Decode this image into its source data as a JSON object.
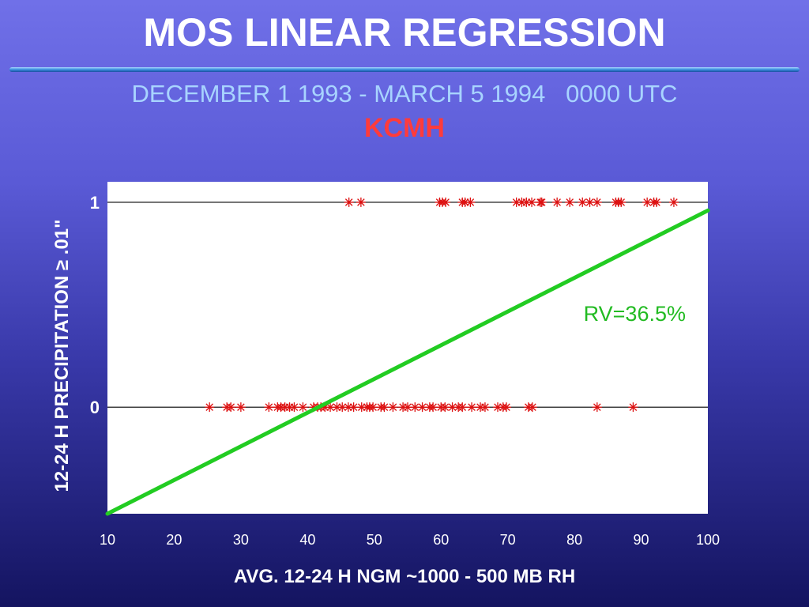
{
  "slide": {
    "title": "MOS LINEAR REGRESSION",
    "subtitle": "DECEMBER 1 1993 - MARCH 5 1994   0000 UTC",
    "station": "KCMH"
  },
  "chart_data": {
    "type": "scatter",
    "title": "MOS LINEAR REGRESSION",
    "xlabel": "AVG. 12-24 H NGM ~1000 - 500 MB RH",
    "ylabel": "12-24 H PRECIPITATION ≥ .01\"",
    "xlim": [
      10,
      100
    ],
    "ylim": [
      -0.52,
      1.1
    ],
    "x_ticks": [
      "10",
      "20",
      "30",
      "40",
      "50",
      "60",
      "70",
      "80",
      "90",
      "100"
    ],
    "y_ticks": [
      "0",
      "1"
    ],
    "y_tick_values": [
      0,
      1
    ],
    "grid": "horizontal lines at 0 and 1",
    "colors": {
      "points": "#dd1111",
      "regression": "#22cc22",
      "annotation": "#22bb22"
    },
    "series": [
      {
        "name": "",
        "kind": "points",
        "x": [
          46.2,
          48,
          59.8,
          60.2,
          60.7,
          63.2,
          63.6,
          64.4,
          71.3,
          72.1,
          72.8,
          73.6,
          74.9,
          75.1,
          77.4,
          79.3,
          81.2,
          82.3,
          83.4,
          86.2,
          86.6,
          87,
          90.9,
          91.9,
          92.3,
          94.9
        ],
        "y": [
          1,
          1,
          1,
          1,
          1,
          1,
          1,
          1,
          1,
          1,
          1,
          1,
          1,
          1,
          1,
          1,
          1,
          1,
          1,
          1,
          1,
          1,
          1,
          1,
          1,
          1
        ]
      },
      {
        "name": "",
        "kind": "points",
        "x": [
          25.3,
          27.9,
          28.5,
          30,
          34.2,
          35.5,
          36,
          36.6,
          37.3,
          38,
          39.3,
          40.9,
          41.5,
          42,
          42.6,
          43.4,
          44.4,
          45.2,
          46.1,
          46.9,
          48.1,
          48.9,
          49.3,
          49.8,
          51,
          51.5,
          52.8,
          54.3,
          55,
          56.1,
          57.2,
          58.3,
          58.8,
          60,
          60.6,
          61.7,
          62.6,
          63.2,
          64.6,
          65.9,
          66.6,
          68.5,
          69.3,
          69.8,
          73.1,
          73.7,
          83.4,
          88.8
        ],
        "y": [
          0,
          0,
          0,
          0,
          0,
          0,
          0,
          0,
          0,
          0,
          0,
          0,
          0,
          0,
          0,
          0,
          0,
          0,
          0,
          0,
          0,
          0,
          0,
          0,
          0,
          0,
          0,
          0,
          0,
          0,
          0,
          0,
          0,
          0,
          0,
          0,
          0,
          0,
          0,
          0,
          0,
          0,
          0,
          0,
          0,
          0,
          0,
          0
        ]
      }
    ],
    "regression": {
      "x": [
        10,
        100
      ],
      "y": [
        -0.52,
        0.96
      ]
    },
    "annotation": "RV=36.5%"
  }
}
